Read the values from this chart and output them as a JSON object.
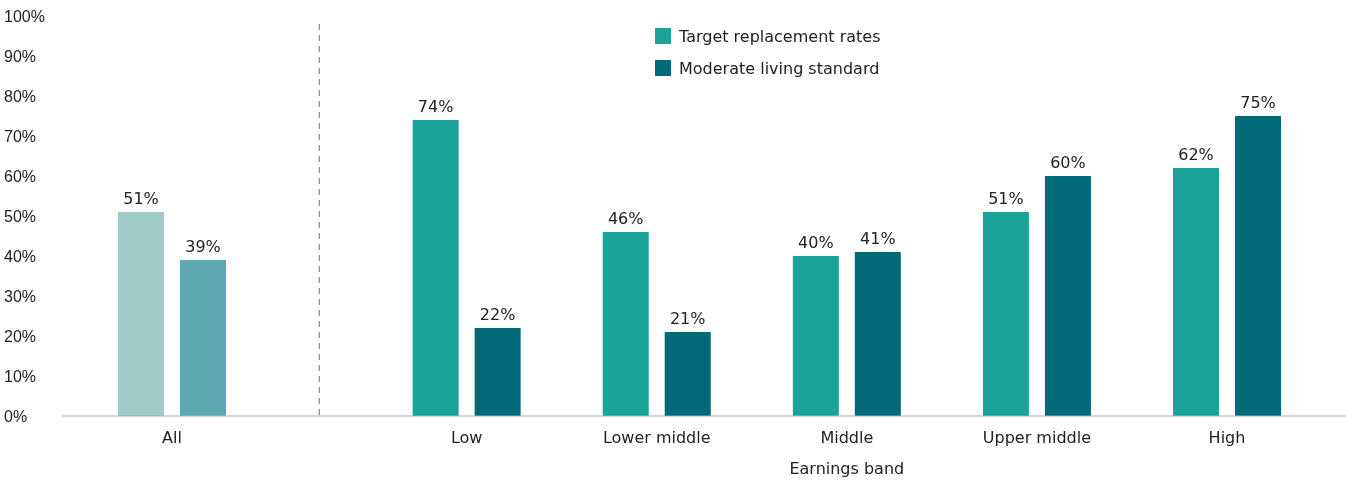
{
  "chart_data": {
    "type": "bar",
    "xlabel": "Earnings band",
    "categories": [
      "All",
      "Low",
      "Lower middle",
      "Middle",
      "Upper middle",
      "High"
    ],
    "series": [
      {
        "name": "Target replacement rates",
        "color": "#1aa39a",
        "colors": [
          "#9fcbc9",
          "#1aa39a",
          "#1aa39a",
          "#1aa39a",
          "#1aa39a",
          "#1aa39a"
        ],
        "values": [
          51,
          74,
          46,
          40,
          51,
          62
        ],
        "value_labels": [
          "51%",
          "74%",
          "46%",
          "40%",
          "51%",
          "62%"
        ]
      },
      {
        "name": "Moderate living standard",
        "color": "#006a78",
        "colors": [
          "#5fa9b5",
          "#006a78",
          "#006a78",
          "#006a78",
          "#006a78",
          "#006a78"
        ],
        "values": [
          39,
          22,
          21,
          41,
          60,
          75
        ],
        "value_labels": [
          "39%",
          "22%",
          "21%",
          "41%",
          "60%",
          "75%"
        ]
      }
    ],
    "ylim": [
      0,
      100
    ],
    "yticks": [
      {
        "value": 0,
        "label": "0%"
      },
      {
        "value": 10,
        "label": "10%"
      },
      {
        "value": 20,
        "label": "20%"
      },
      {
        "value": 30,
        "label": "30%"
      },
      {
        "value": 40,
        "label": "40%"
      },
      {
        "value": 50,
        "label": "50%"
      },
      {
        "value": 60,
        "label": "60%"
      },
      {
        "value": 70,
        "label": "70%"
      },
      {
        "value": 80,
        "label": "80%"
      },
      {
        "value": 90,
        "label": "90%"
      },
      {
        "value": 100,
        "label": "100%"
      }
    ],
    "grid": false,
    "legend": "top"
  }
}
